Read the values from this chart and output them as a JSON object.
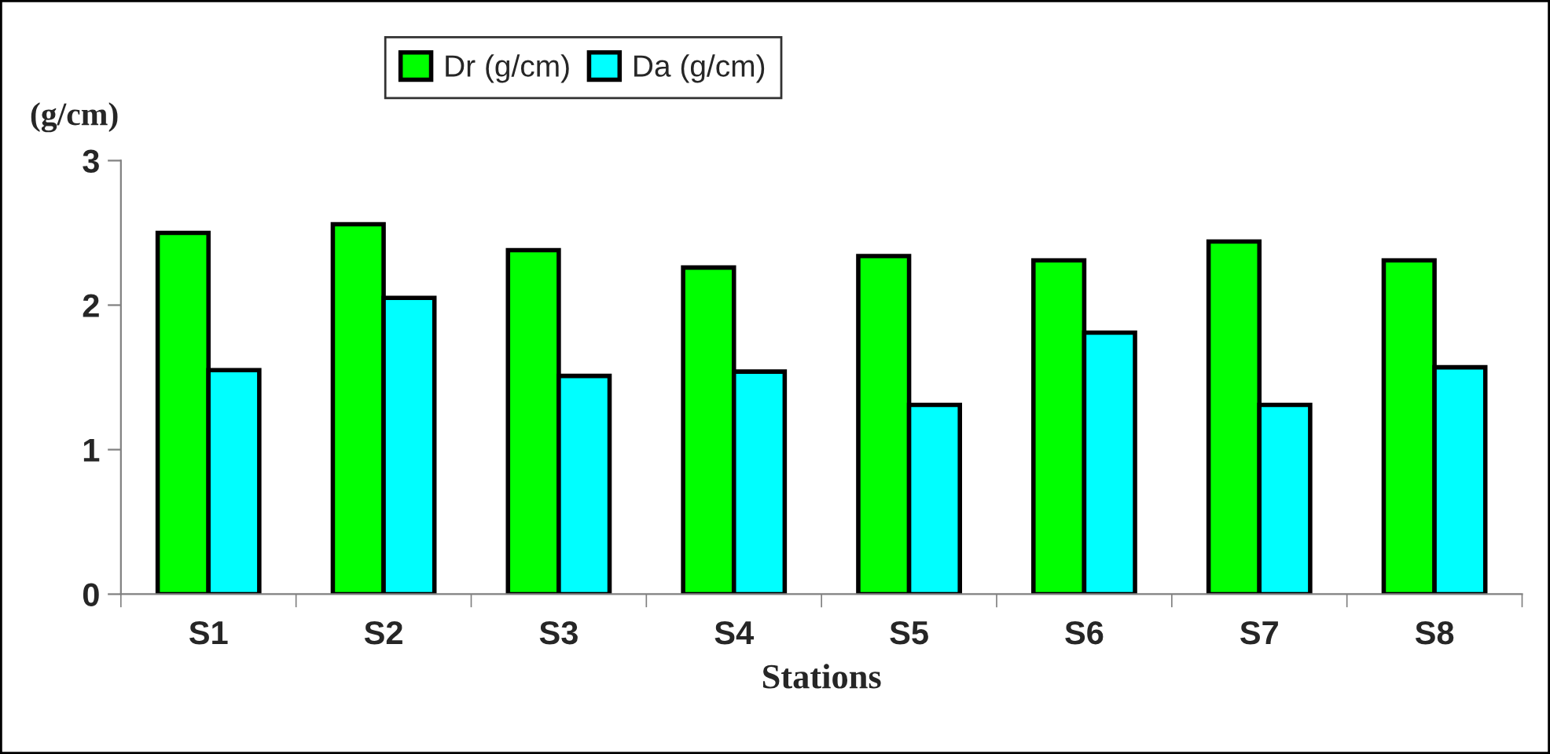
{
  "chart_data": {
    "type": "bar",
    "xlabel": "Stations",
    "ylabel": "(g/cm)",
    "categories": [
      "S1",
      "S2",
      "S3",
      "S4",
      "S5",
      "S6",
      "S7",
      "S8"
    ],
    "series": [
      {
        "name": "Dr (g/cm)",
        "color": "#00ff00",
        "values": [
          2.5,
          2.56,
          2.38,
          2.26,
          2.34,
          2.31,
          2.44,
          2.31
        ]
      },
      {
        "name": "Da (g/cm)",
        "color": "#00ffff",
        "values": [
          1.55,
          2.05,
          1.51,
          1.54,
          1.31,
          1.81,
          1.31,
          1.57
        ]
      }
    ],
    "ylim": [
      0,
      3
    ],
    "yticks": [
      0,
      1,
      2,
      3
    ],
    "grid": false,
    "legend": "top"
  }
}
